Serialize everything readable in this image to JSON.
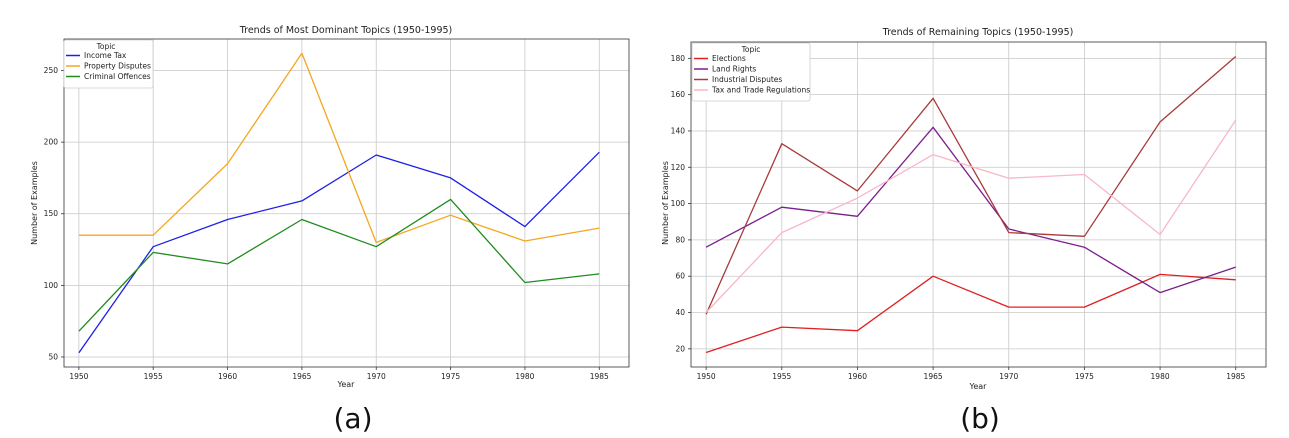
{
  "chart_data": [
    {
      "type": "line",
      "caption": "(a)",
      "title": "Trends of Most Dominant Topics (1950-1995)",
      "xlabel": "Year",
      "ylabel": "Number of Examples",
      "legend_title": "Topic",
      "legend_position": "top-left",
      "grid": true,
      "x": [
        1950,
        1955,
        1960,
        1965,
        1970,
        1975,
        1980,
        1985
      ],
      "xlim": [
        1949,
        1987
      ],
      "ylim": [
        43,
        272
      ],
      "yticks": [
        50,
        100,
        150,
        200,
        250
      ],
      "series": [
        {
          "name": "Income Tax",
          "color": "#1f1fe6",
          "values": [
            53,
            127,
            146,
            159,
            191,
            175,
            141,
            193
          ]
        },
        {
          "name": "Property Disputes",
          "color": "#f5a623",
          "values": [
            135,
            135,
            185,
            262,
            130,
            149,
            131,
            140
          ]
        },
        {
          "name": "Criminal Offences",
          "color": "#1e8c1e",
          "values": [
            68,
            123,
            115,
            146,
            127,
            160,
            102,
            108
          ]
        }
      ]
    },
    {
      "type": "line",
      "caption": "(b)",
      "title": "Trends of Remaining Topics (1950-1995)",
      "xlabel": "Year",
      "ylabel": "Number of Examples",
      "legend_title": "Topic",
      "legend_position": "top-left",
      "grid": true,
      "x": [
        1950,
        1955,
        1960,
        1965,
        1970,
        1975,
        1980,
        1985
      ],
      "xlim": [
        1949,
        1987
      ],
      "ylim": [
        10,
        189
      ],
      "yticks": [
        20,
        40,
        60,
        80,
        100,
        120,
        140,
        160,
        180
      ],
      "series": [
        {
          "name": "Elections",
          "color": "#e02020",
          "values": [
            18,
            32,
            30,
            60,
            43,
            43,
            61,
            58
          ]
        },
        {
          "name": "Land Rights",
          "color": "#7a1f8c",
          "values": [
            76,
            98,
            93,
            142,
            86,
            76,
            51,
            65
          ]
        },
        {
          "name": "Industrial Disputes",
          "color": "#a83a3a",
          "values": [
            39,
            133,
            107,
            158,
            84,
            82,
            145,
            181
          ]
        },
        {
          "name": "Tax and Trade Regulations",
          "color": "#f7b8c8",
          "values": [
            40,
            84,
            103,
            127,
            114,
            116,
            83,
            146
          ]
        }
      ]
    }
  ]
}
